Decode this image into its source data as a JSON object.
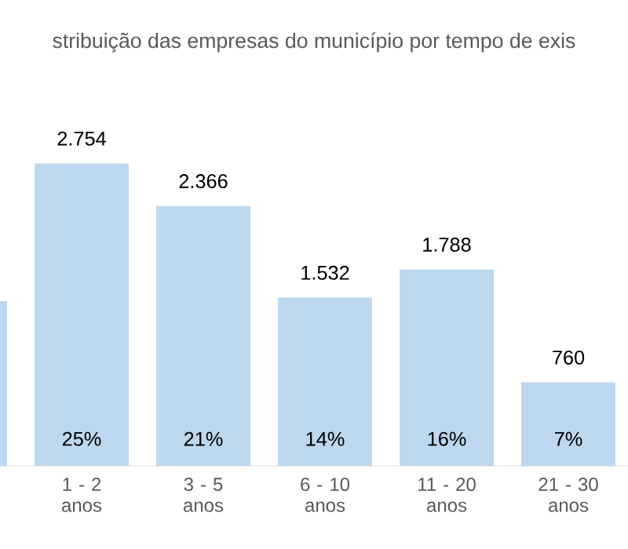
{
  "chart_data": {
    "type": "bar",
    "title": "stribuição das empresas do município por tempo de exis",
    "categories": [
      null,
      "1 - 2 anos",
      "3 - 5 anos",
      "6 - 10 anos",
      "11 - 20 anos",
      "21 - 30 anos"
    ],
    "values": [
      1500,
      2754,
      2366,
      1532,
      1788,
      760
    ],
    "color": "#bdd7ee",
    "value_labels": [
      null,
      "2.754",
      "2.366",
      "1.532",
      "1.788",
      "760"
    ],
    "annotations": [
      "25%",
      "21%",
      "14%",
      "16%",
      "7%"
    ]
  }
}
